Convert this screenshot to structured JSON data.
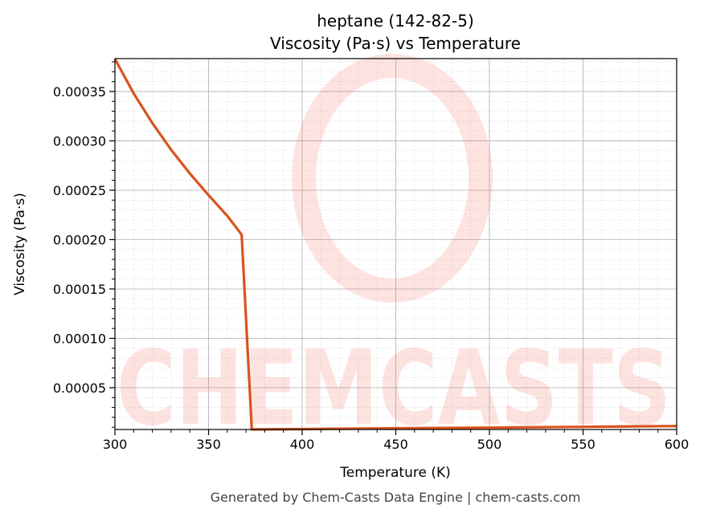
{
  "chart_data": {
    "type": "line",
    "title": "heptane (142-82-5)",
    "subtitle": "Viscosity (Pa·s) vs Temperature",
    "xlabel": "Temperature (K)",
    "ylabel": "Viscosity (Pa·s)",
    "xlim": [
      300,
      600
    ],
    "ylim": [
      7.7e-06,
      0.0003833
    ],
    "xticks": [
      300,
      350,
      400,
      450,
      500,
      550,
      600
    ],
    "xtick_labels": [
      "300",
      "350",
      "400",
      "450",
      "500",
      "550",
      "600"
    ],
    "yticks": [
      5e-05,
      0.0001,
      0.00015,
      0.0002,
      0.00025,
      0.0003,
      0.00035
    ],
    "ytick_labels": [
      "0.00005",
      "0.00010",
      "0.00015",
      "0.00020",
      "0.00025",
      "0.00030",
      "0.00035"
    ],
    "grid": true,
    "series": [
      {
        "name": "Viscosity",
        "color": "#d9531e",
        "x": [
          300,
          310,
          320,
          330,
          340,
          350,
          360,
          367.7,
          373.1,
          400,
          450,
          500,
          550,
          600
        ],
        "y": [
          0.000383,
          0.000348,
          0.000318,
          0.000291,
          0.000267,
          0.000245,
          0.000224,
          0.000205,
          7.7e-06,
          8.1e-06,
          8.9e-06,
          9.6e-06,
          1.04e-05,
          1.12e-05
        ]
      }
    ],
    "watermark": "CHEMCASTS",
    "footer": "Generated by Chem-Casts Data Engine | chem-casts.com"
  }
}
